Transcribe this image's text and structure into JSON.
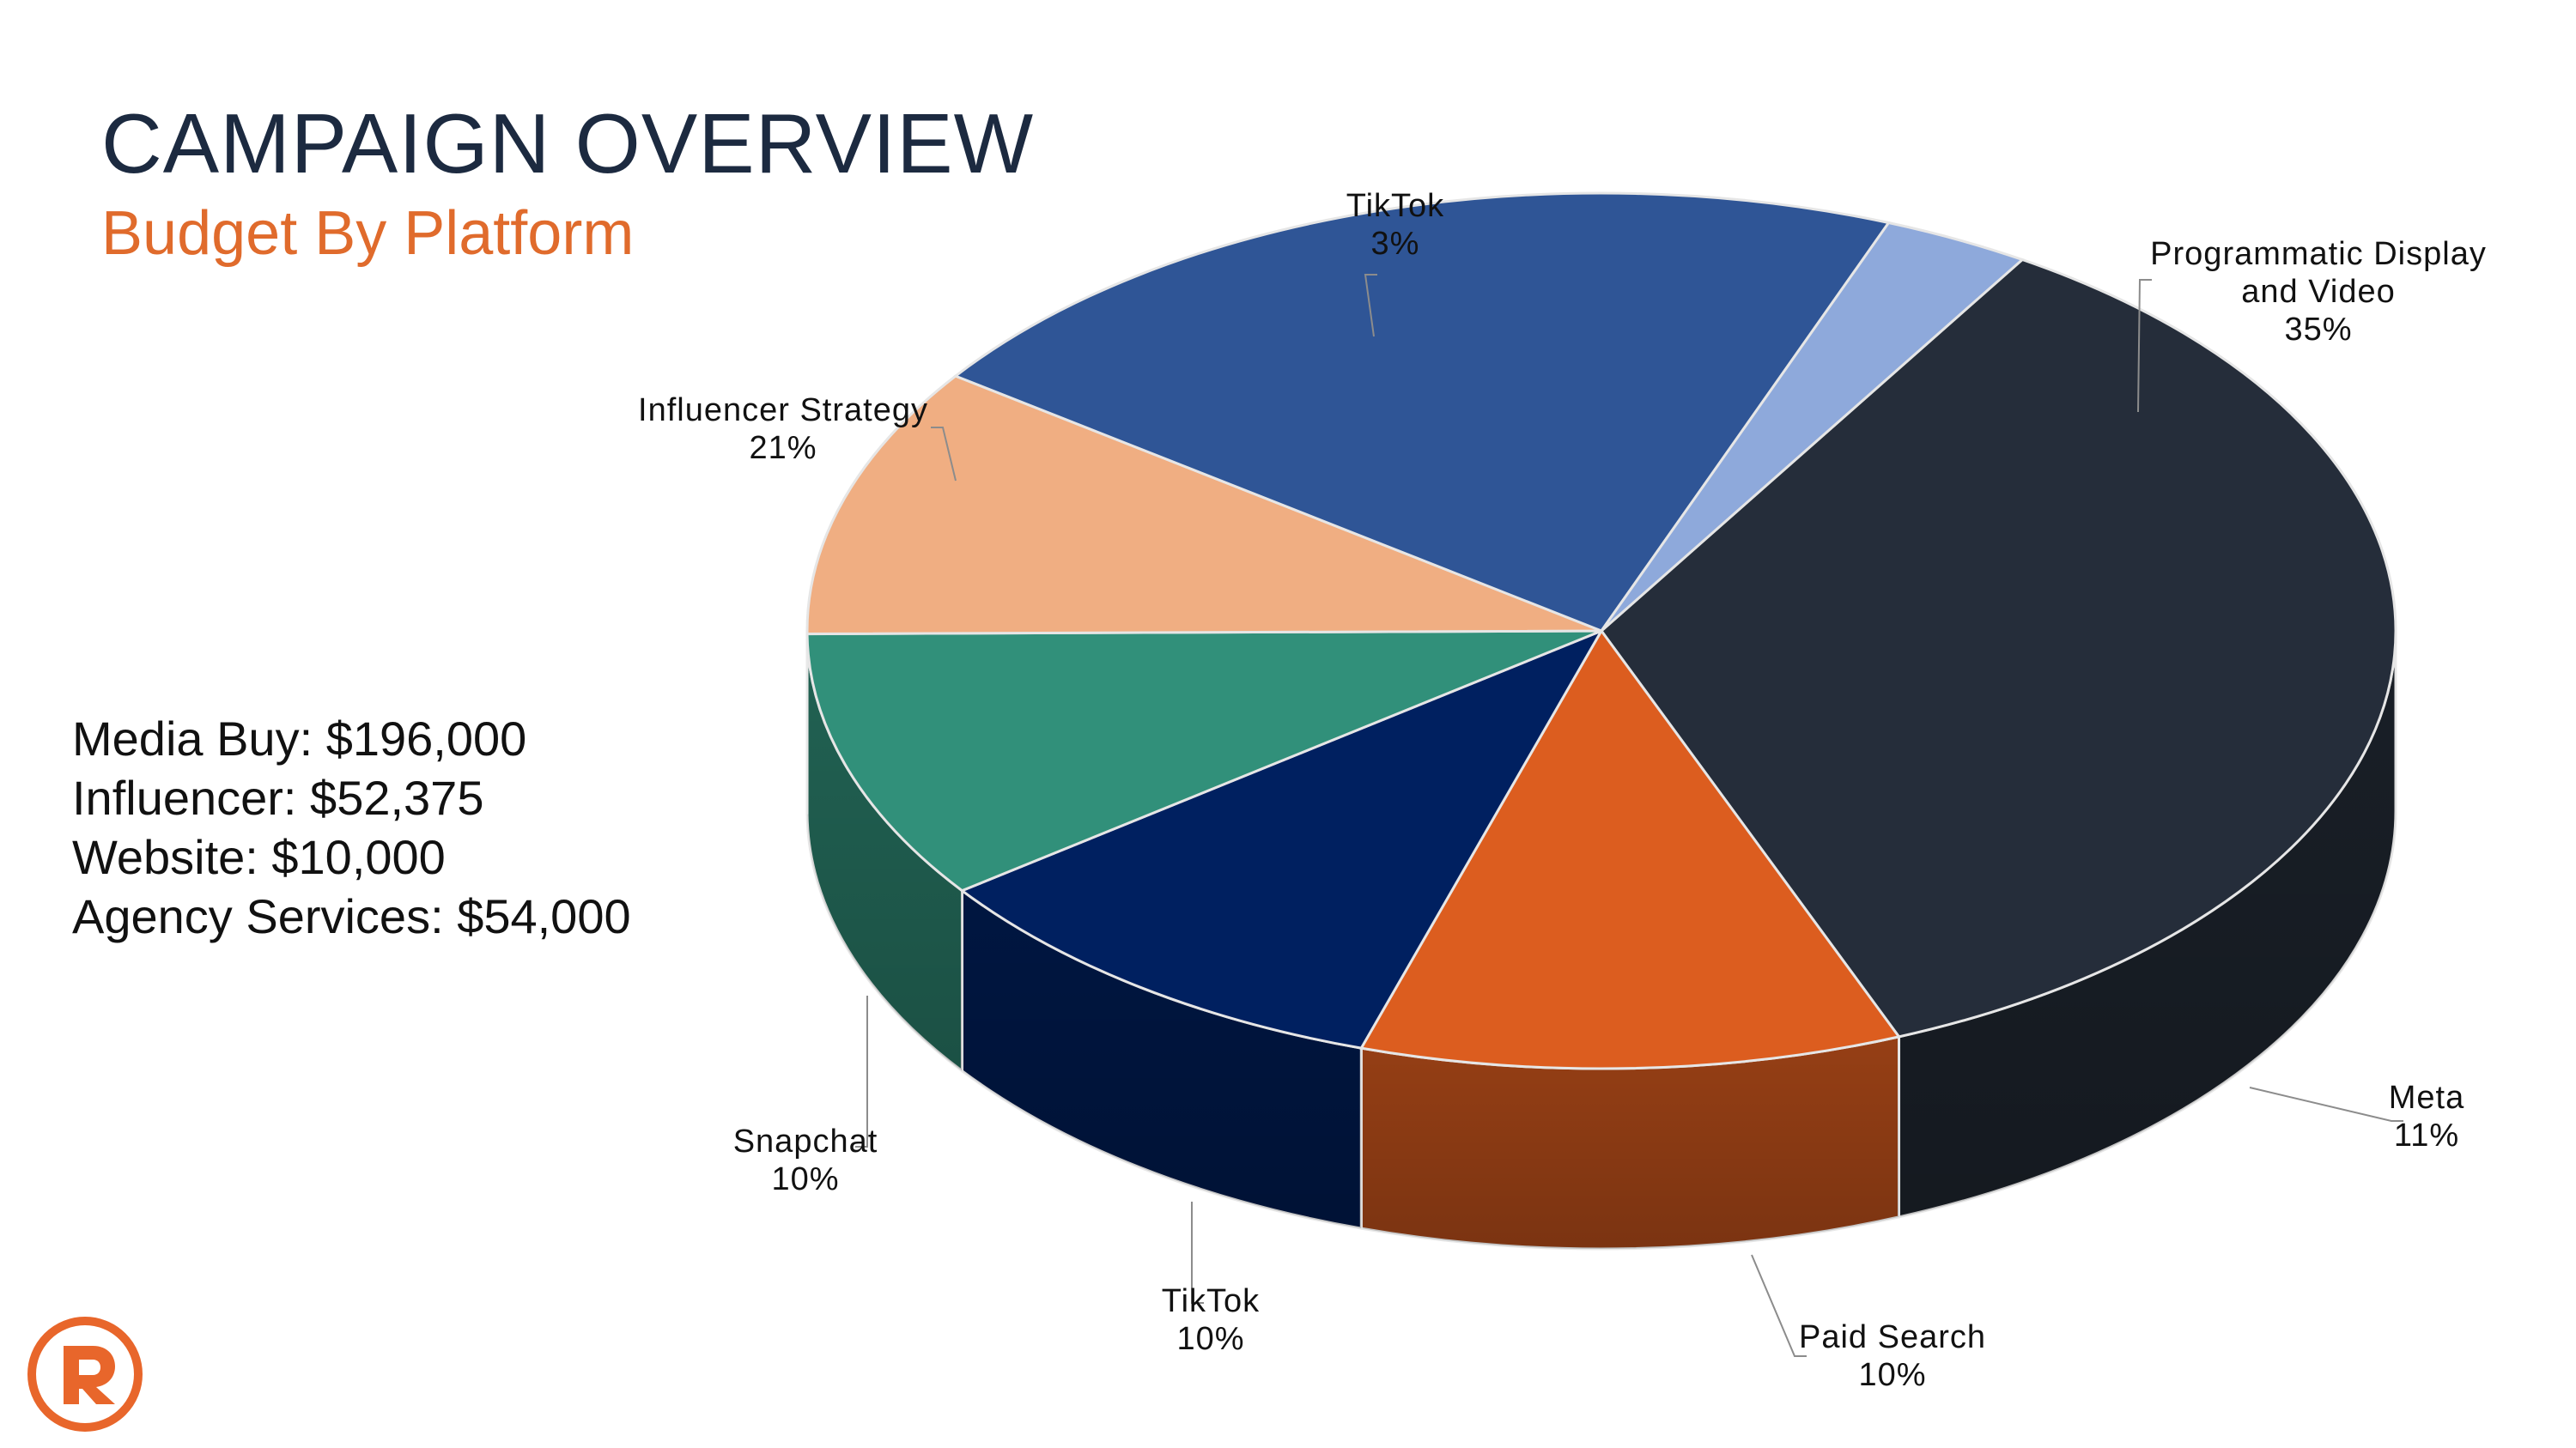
{
  "header": {
    "title": "CAMPAIGN OVERVIEW",
    "subtitle": "Budget By Platform"
  },
  "budget": [
    {
      "label": "Media Buy",
      "value": "$196,000",
      "text": "Media Buy: $196,000"
    },
    {
      "label": "Influencer",
      "value": "$52,375",
      "text": "Influencer: $52,375"
    },
    {
      "label": "Website",
      "value": "$10,000",
      "text": "Website: $10,000"
    },
    {
      "label": "Agency Services",
      "value": "$54,000",
      "text": "Agency Services: $54,000"
    }
  ],
  "chart_data": {
    "type": "pie",
    "style": "3d",
    "slices": [
      {
        "name": "Programmatic Display and Video",
        "label_lines": [
          "Programmatic Display",
          "and Video"
        ],
        "percent_label": "35%",
        "value": 35,
        "color": "#252d3a"
      },
      {
        "name": "Meta",
        "label_lines": [
          "Meta"
        ],
        "percent_label": "11%",
        "value": 11,
        "color": "#dc5d1f"
      },
      {
        "name": "Paid Search",
        "label_lines": [
          "Paid Search"
        ],
        "percent_label": "10%",
        "value": 10,
        "color": "#002060"
      },
      {
        "name": "TikTok",
        "label_lines": [
          "TikTok"
        ],
        "percent_label": "10%",
        "value": 10,
        "color": "#31907a"
      },
      {
        "name": "Snapchat",
        "label_lines": [
          "Snapchat"
        ],
        "percent_label": "10%",
        "value": 10,
        "color": "#f0ae82"
      },
      {
        "name": "Influencer Strategy",
        "label_lines": [
          "Influencer Strategy"
        ],
        "percent_label": "21%",
        "value": 21,
        "color": "#2f5596"
      },
      {
        "name": "TikTok",
        "label_lines": [
          "TikTok"
        ],
        "percent_label": "3%",
        "value": 3,
        "color": "#8ea9db"
      }
    ]
  },
  "colors": {
    "title": "#1c2a40",
    "subtitle": "#e06b2c",
    "logo": "#e8662b"
  },
  "logo_icon": "r-logo-icon"
}
